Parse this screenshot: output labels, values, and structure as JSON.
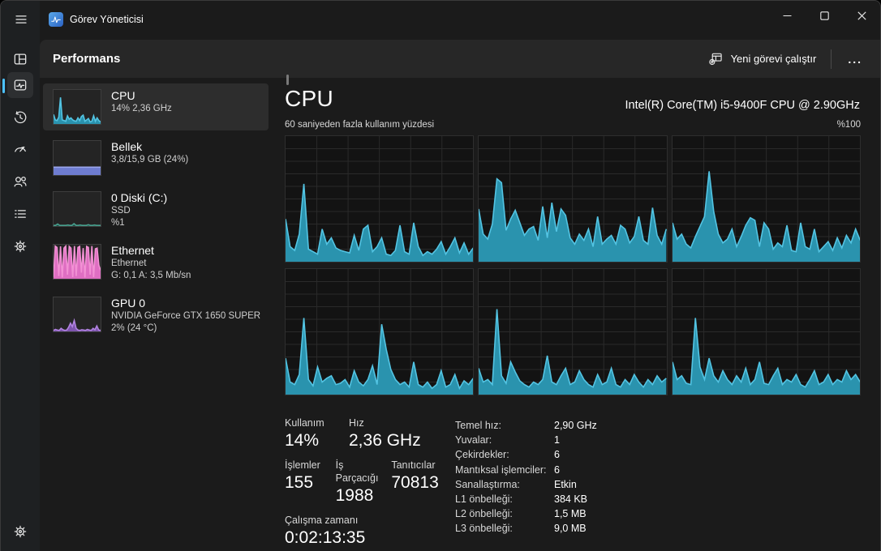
{
  "titlebar": {
    "title": "Görev Yöneticisi",
    "controls": [
      "minimize",
      "maximize",
      "close"
    ]
  },
  "rail": {
    "accent_color": "#4cc2ff",
    "items": [
      {
        "icon": "processes-icon",
        "selected": false
      },
      {
        "icon": "performance-icon",
        "selected": true
      },
      {
        "icon": "app-history-icon",
        "selected": false
      },
      {
        "icon": "startup-apps-icon",
        "selected": false
      },
      {
        "icon": "users-icon",
        "selected": false
      },
      {
        "icon": "details-icon",
        "selected": false
      },
      {
        "icon": "services-icon",
        "selected": false
      }
    ],
    "bottom_icon": "settings-gear-icon"
  },
  "header": {
    "page_title": "Performans",
    "new_task_label": "Yeni görevi çalıştır",
    "new_task_icon": "new-task-icon",
    "more_label": "..."
  },
  "sidebar": {
    "items": [
      {
        "id": "cpu",
        "title": "CPU",
        "lines": [
          "14%  2,36 GHz"
        ],
        "selected": true,
        "spark": "cpu_thumb",
        "stroke": "#53c4e3",
        "fill": "#2a93ae"
      },
      {
        "id": "memory",
        "title": "Bellek",
        "lines": [
          "3,8/15,9 GB (24%)"
        ],
        "selected": false,
        "spark": "mem_thumb",
        "stroke": "#9aa5ec",
        "fill": "#6e7cd0"
      },
      {
        "id": "disk",
        "title": "0 Diski (C:)",
        "lines": [
          "SSD",
          "%1"
        ],
        "selected": false,
        "spark": "disk_thumb",
        "stroke": "#49a08e",
        "fill": "#1d4a42"
      },
      {
        "id": "ethernet",
        "title": "Ethernet",
        "lines": [
          "Ethernet",
          "G: 0,1 A: 3,5 Mb/sn"
        ],
        "selected": false,
        "spark": "eth_thumb",
        "stroke": "#f291d4",
        "fill": "#df6ec2"
      },
      {
        "id": "gpu",
        "title": "GPU 0",
        "lines": [
          "NVIDIA GeForce GTX 1650 SUPER",
          "2%  (24 °C)"
        ],
        "selected": false,
        "spark": "gpu_thumb",
        "stroke": "#b283e2",
        "fill": "#7e55ad"
      }
    ],
    "sparks": {
      "cpu_thumb": [
        28,
        12,
        10,
        20,
        78,
        12,
        10,
        8,
        24,
        14,
        18,
        12,
        9,
        8,
        18,
        10,
        22,
        26,
        8,
        12,
        16,
        6,
        8,
        24,
        8,
        18,
        10,
        6
      ],
      "mem_thumb": [
        23,
        23,
        23,
        23,
        23,
        23,
        23,
        23
      ],
      "disk_thumb": [
        2,
        2,
        6,
        2,
        2,
        2,
        2,
        3,
        2,
        2,
        7,
        2,
        2,
        3,
        2,
        2,
        2,
        4,
        2,
        2,
        3,
        2,
        2,
        2
      ],
      "eth_thumb": [
        5,
        96,
        92,
        8,
        95,
        4,
        90,
        96,
        12,
        95,
        90,
        5,
        96,
        8,
        92,
        95,
        18,
        90,
        4,
        95,
        92,
        12,
        96,
        5,
        88,
        90,
        40,
        25
      ],
      "gpu_thumb": [
        3,
        6,
        4,
        3,
        9,
        5,
        3,
        4,
        12,
        24,
        14,
        32,
        9,
        4,
        3,
        5,
        4,
        3,
        6,
        4,
        3,
        9,
        5,
        16,
        4,
        3
      ]
    }
  },
  "pane": {
    "title": "CPU",
    "subtitle": "Intel(R) Core(TM) i5-9400F CPU @ 2.90GHz",
    "caption_left": "60 saniyeden fazla kullanım yüzdesi",
    "caption_right": "%100",
    "stats_left": {
      "row1": [
        {
          "label": "Kullanım",
          "value": "14%"
        },
        {
          "label": "Hız",
          "value": "2,36 GHz"
        }
      ],
      "row2": [
        {
          "label": "İşlemler",
          "value": "155"
        },
        {
          "label": "İş Parçacığı",
          "value": "1988"
        },
        {
          "label": "Tanıtıcılar",
          "value": "70813"
        }
      ],
      "row3": [
        {
          "label": "Çalışma zamanı",
          "value": "0:02:13:35"
        }
      ]
    },
    "stats_right": [
      {
        "label": "Temel hız:",
        "value": "2,90 GHz"
      },
      {
        "label": "Yuvalar:",
        "value": "1"
      },
      {
        "label": "Çekirdekler:",
        "value": "6"
      },
      {
        "label": "Mantıksal işlemciler:",
        "value": "6"
      },
      {
        "label": "Sanallaştırma:",
        "value": "Etkin"
      },
      {
        "label": "L1 önbelleği:",
        "value": "384 KB"
      },
      {
        "label": "L2 önbelleği:",
        "value": "1,5 MB"
      },
      {
        "label": "L3 önbelleği:",
        "value": "9,0 MB"
      }
    ]
  },
  "chart_data": {
    "type": "area",
    "title": "60 saniyeden fazla kullanım yüzdesi",
    "ylim": [
      0,
      100
    ],
    "x_span_seconds": 60,
    "grid": true,
    "stroke": "#53c4e3",
    "fill": "#2a93ae",
    "layout": "2 rows x 3 columns (logical processors)",
    "series": [
      {
        "name": "logical-processor-1",
        "values": [
          34,
          12,
          9,
          22,
          62,
          10,
          8,
          6,
          26,
          14,
          19,
          11,
          9,
          8,
          7,
          21,
          9,
          26,
          29,
          8,
          12,
          19,
          6,
          5,
          9,
          29,
          8,
          6,
          31,
          12,
          5,
          8,
          6,
          10,
          16,
          6,
          12,
          19,
          7,
          15,
          6,
          11
        ]
      },
      {
        "name": "logical-processor-2",
        "values": [
          42,
          22,
          18,
          30,
          66,
          63,
          25,
          34,
          41,
          31,
          21,
          26,
          28,
          17,
          44,
          19,
          47,
          24,
          42,
          37,
          19,
          14,
          22,
          17,
          26,
          12,
          36,
          14,
          18,
          21,
          14,
          29,
          26,
          15,
          20,
          36,
          17,
          14,
          43,
          21,
          14,
          26
        ]
      },
      {
        "name": "logical-processor-3",
        "values": [
          31,
          18,
          22,
          14,
          11,
          20,
          28,
          36,
          72,
          40,
          22,
          15,
          18,
          26,
          12,
          20,
          29,
          35,
          33,
          12,
          31,
          26,
          10,
          15,
          12,
          29,
          9,
          8,
          31,
          12,
          10,
          26,
          8,
          12,
          16,
          9,
          19,
          11,
          21,
          15,
          26,
          17
        ]
      },
      {
        "name": "logical-processor-4",
        "values": [
          29,
          10,
          8,
          16,
          61,
          12,
          7,
          22,
          10,
          13,
          15,
          8,
          9,
          12,
          6,
          19,
          10,
          7,
          12,
          23,
          8,
          56,
          36,
          20,
          12,
          8,
          10,
          6,
          26,
          8,
          6,
          10,
          5,
          8,
          19,
          6,
          8,
          16,
          5,
          11,
          8,
          13
        ]
      },
      {
        "name": "logical-processor-5",
        "values": [
          21,
          10,
          12,
          8,
          68,
          15,
          9,
          26,
          18,
          11,
          8,
          6,
          10,
          8,
          12,
          31,
          10,
          8,
          15,
          21,
          8,
          10,
          19,
          12,
          8,
          6,
          16,
          8,
          10,
          21,
          8,
          6,
          12,
          8,
          16,
          10,
          6,
          12,
          8,
          15,
          10,
          13
        ]
      },
      {
        "name": "logical-processor-6",
        "values": [
          26,
          12,
          15,
          9,
          8,
          61,
          22,
          12,
          29,
          15,
          10,
          19,
          12,
          8,
          15,
          10,
          21,
          8,
          12,
          26,
          9,
          8,
          15,
          21,
          8,
          12,
          10,
          16,
          8,
          6,
          12,
          19,
          8,
          10,
          16,
          8,
          12,
          10,
          19,
          12,
          16,
          10
        ]
      }
    ]
  }
}
